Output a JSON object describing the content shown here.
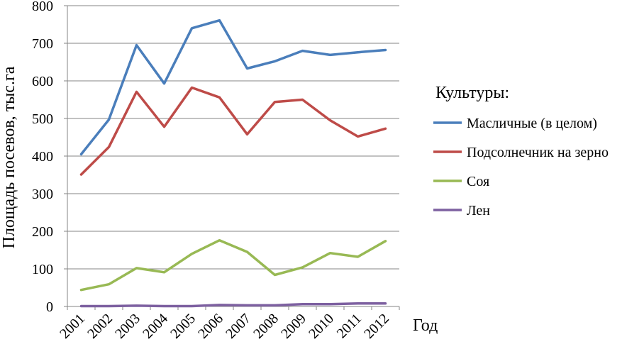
{
  "chart_data": {
    "type": "line",
    "title": "",
    "xlabel": "Год",
    "ylabel": "Площадь посевов, тыс.га",
    "ylim": [
      0,
      800
    ],
    "yticks": [
      0,
      100,
      200,
      300,
      400,
      500,
      600,
      700,
      800
    ],
    "grid": true,
    "legend_placement": "right",
    "legend_title": "Культуры:",
    "categories": [
      "2001",
      "2002",
      "2003",
      "2004",
      "2005",
      "2006",
      "2007",
      "2008",
      "2009",
      "2010",
      "2011",
      "2012"
    ],
    "series": [
      {
        "name": "Масличные (в целом)",
        "color": "#4a7ebb",
        "values": [
          405,
          497,
          695,
          593,
          740,
          761,
          633,
          652,
          680,
          669,
          676,
          682
        ]
      },
      {
        "name": "Подсолнечник на зерно",
        "color": "#be4b48",
        "values": [
          351,
          424,
          571,
          478,
          582,
          556,
          458,
          544,
          550,
          495,
          452,
          473
        ]
      },
      {
        "name": "Соя",
        "color": "#98b954",
        "values": [
          44,
          59,
          102,
          91,
          140,
          176,
          145,
          84,
          104,
          142,
          132,
          174
        ]
      },
      {
        "name": "Лен",
        "color": "#7d60a0",
        "values": [
          1,
          1,
          2,
          1,
          1,
          4,
          3,
          3,
          6,
          6,
          8,
          8
        ]
      }
    ]
  }
}
